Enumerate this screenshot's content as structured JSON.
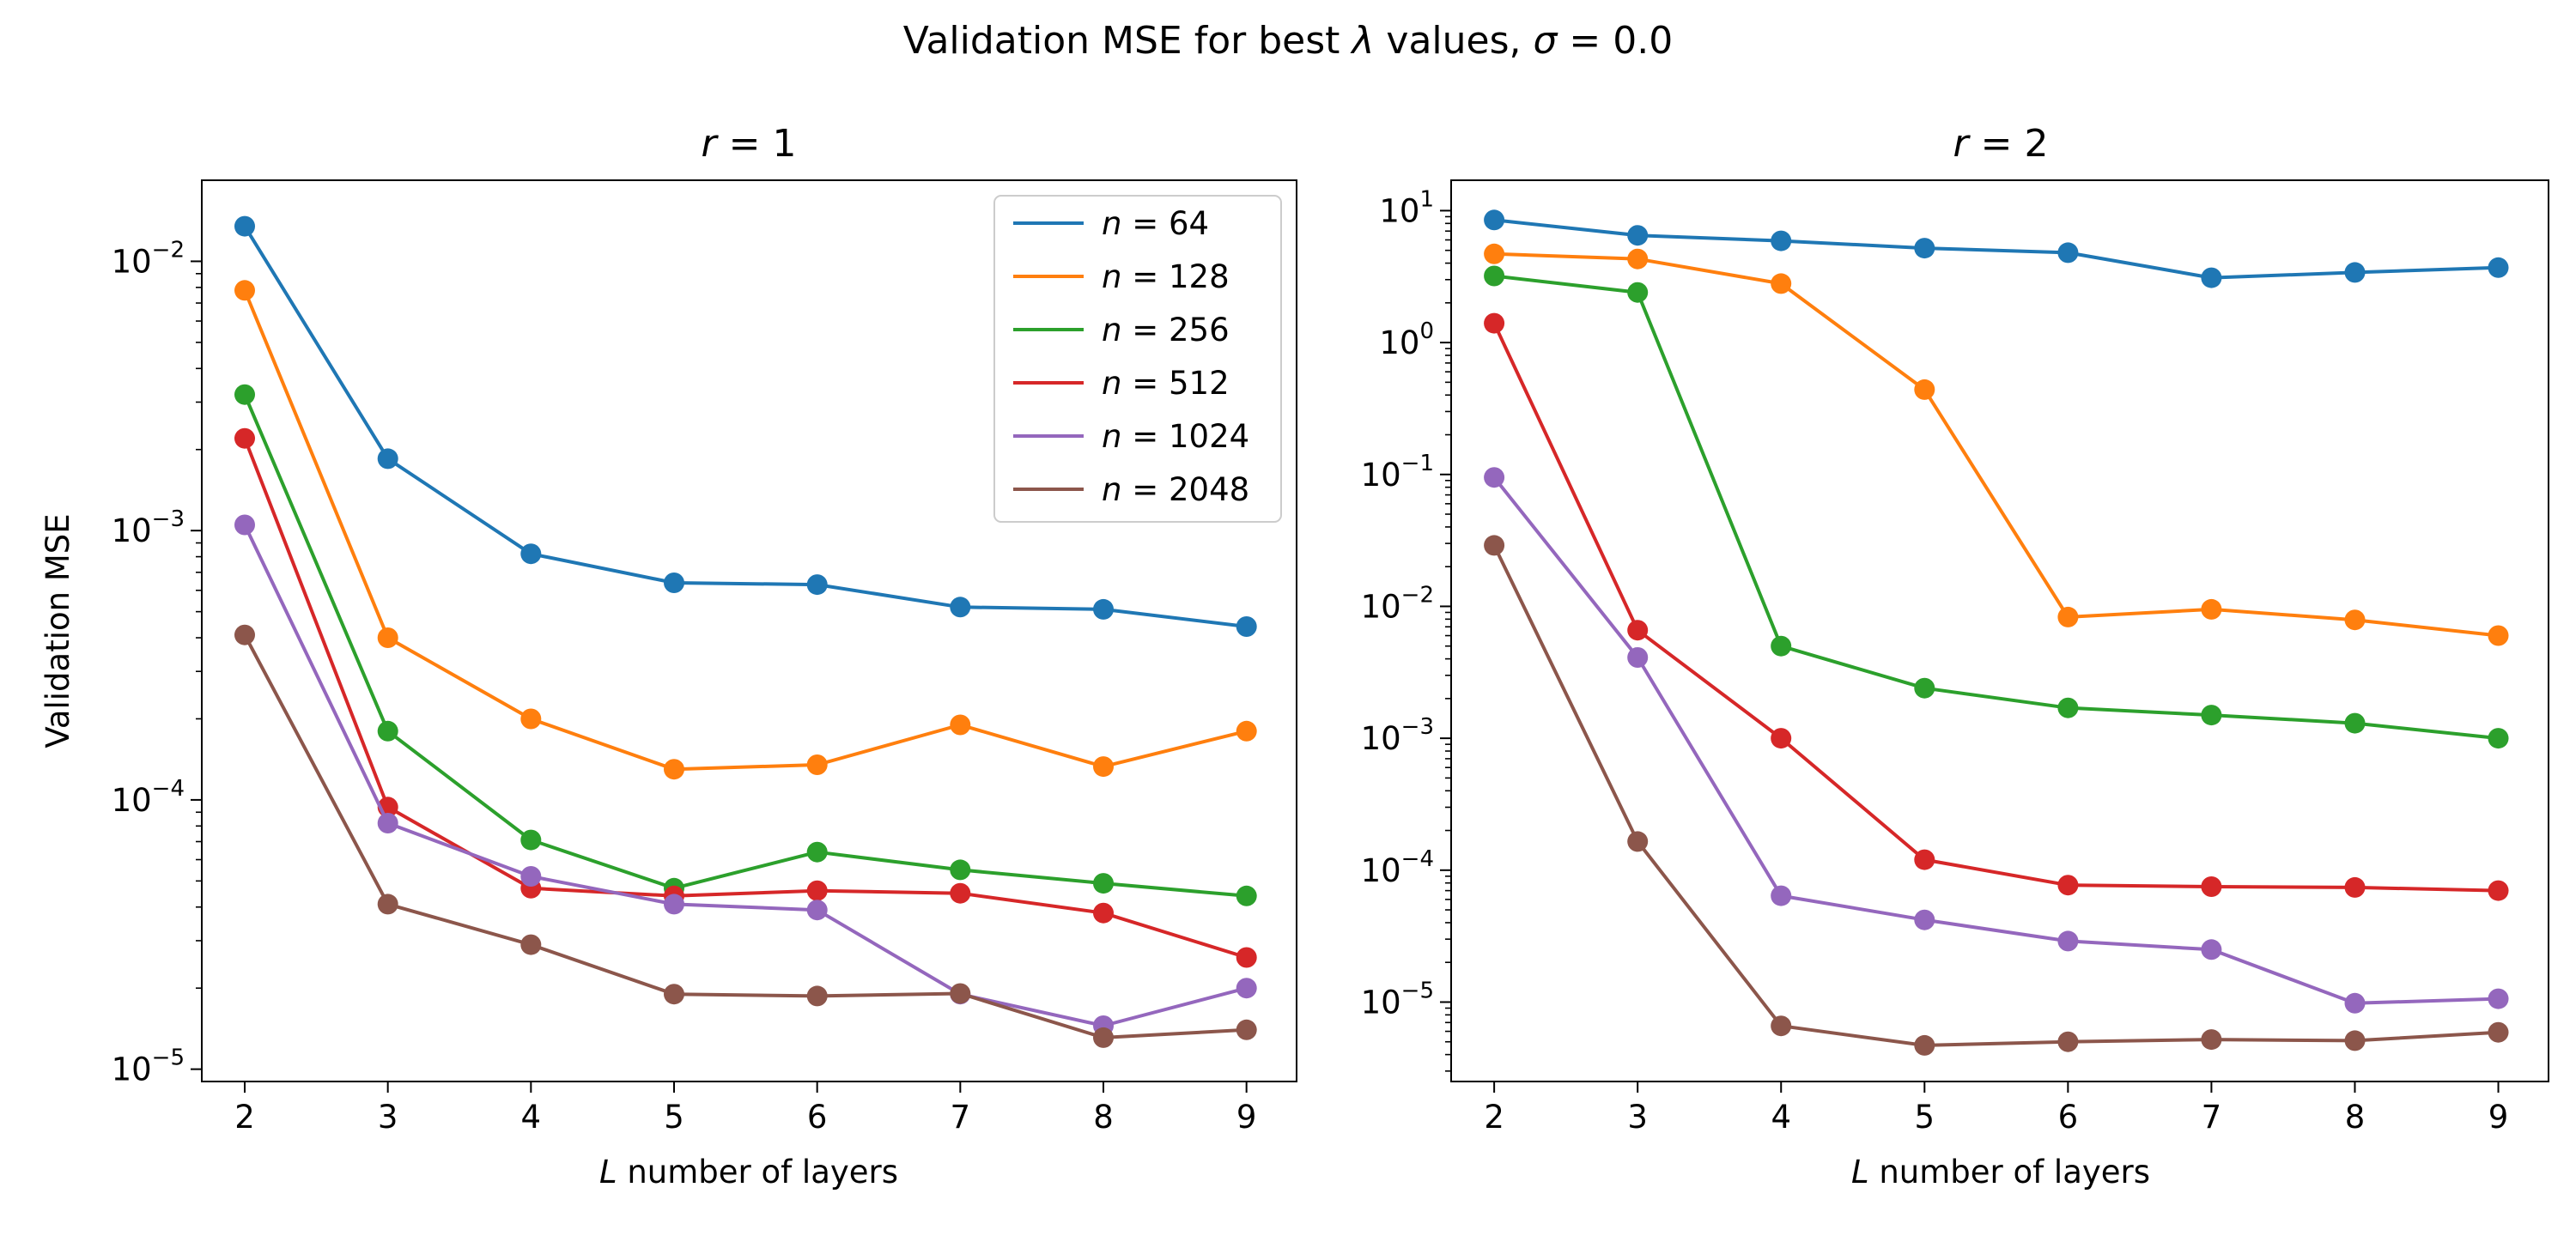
{
  "figure": {
    "title_pre": "Validation MSE for best ",
    "title_lambda": "λ",
    "title_mid": " values, ",
    "title_sigma": "σ",
    "title_post": " = 0.0"
  },
  "legend": {
    "location": "upper right of left panel",
    "entries": [
      {
        "var": "n",
        "eq": " = ",
        "value": "64"
      },
      {
        "var": "n",
        "eq": " = ",
        "value": "128"
      },
      {
        "var": "n",
        "eq": " = ",
        "value": "256"
      },
      {
        "var": "n",
        "eq": " = ",
        "value": "512"
      },
      {
        "var": "n",
        "eq": " = ",
        "value": "1024"
      },
      {
        "var": "n",
        "eq": " = ",
        "value": "2048"
      }
    ]
  },
  "colors": [
    "#1f77b4",
    "#ff7f0e",
    "#2ca02c",
    "#d62728",
    "#9467bd",
    "#8c564b"
  ],
  "chart_data": [
    {
      "type": "line",
      "title_var": "r",
      "title_rest": " = 1",
      "xlabel_var": "L",
      "xlabel_rest": " number of layers",
      "ylabel": "Validation MSE",
      "yscale": "log",
      "xlim": [
        1.7,
        9.35
      ],
      "ylim": [
        9e-06,
        0.02
      ],
      "x": [
        2,
        3,
        4,
        5,
        6,
        7,
        8,
        9
      ],
      "xticks": [
        "2",
        "3",
        "4",
        "5",
        "6",
        "7",
        "8",
        "9"
      ],
      "yticks": [
        {
          "base": "10",
          "exp": "−2",
          "value": 0.01
        },
        {
          "base": "10",
          "exp": "−3",
          "value": 0.001
        },
        {
          "base": "10",
          "exp": "−4",
          "value": 0.0001
        },
        {
          "base": "10",
          "exp": "−5",
          "value": 1e-05
        }
      ],
      "grid": false,
      "series": [
        {
          "name": "n = 64",
          "values": [
            0.0135,
            0.00185,
            0.00082,
            0.00064,
            0.00063,
            0.00052,
            0.00051,
            0.00044
          ]
        },
        {
          "name": "n = 128",
          "values": [
            0.0078,
            0.0004,
            0.0002,
            0.00013,
            0.000135,
            0.00019,
            0.000133,
            0.00018
          ]
        },
        {
          "name": "n = 256",
          "values": [
            0.0032,
            0.00018,
            7.1e-05,
            4.7e-05,
            6.4e-05,
            5.5e-05,
            4.9e-05,
            4.4e-05
          ]
        },
        {
          "name": "n = 512",
          "values": [
            0.0022,
            9.4e-05,
            4.7e-05,
            4.4e-05,
            4.6e-05,
            4.5e-05,
            3.8e-05,
            2.6e-05
          ]
        },
        {
          "name": "n = 1024",
          "values": [
            0.00105,
            8.2e-05,
            5.2e-05,
            4.1e-05,
            3.9e-05,
            1.9e-05,
            1.45e-05,
            2e-05
          ]
        },
        {
          "name": "n = 2048",
          "values": [
            0.00041,
            4.1e-05,
            2.9e-05,
            1.9e-05,
            1.87e-05,
            1.91e-05,
            1.31e-05,
            1.4e-05
          ]
        }
      ]
    },
    {
      "type": "line",
      "title_var": "r",
      "title_rest": " = 2",
      "xlabel_var": "L",
      "xlabel_rest": " number of layers",
      "ylabel": "",
      "yscale": "log",
      "xlim": [
        1.7,
        9.35
      ],
      "ylim": [
        2.5e-06,
        17
      ],
      "x": [
        2,
        3,
        4,
        5,
        6,
        7,
        8,
        9
      ],
      "xticks": [
        "2",
        "3",
        "4",
        "5",
        "6",
        "7",
        "8",
        "9"
      ],
      "yticks": [
        {
          "base": "10",
          "exp": "1",
          "value": 10
        },
        {
          "base": "10",
          "exp": "0",
          "value": 1
        },
        {
          "base": "10",
          "exp": "−1",
          "value": 0.1
        },
        {
          "base": "10",
          "exp": "−2",
          "value": 0.01
        },
        {
          "base": "10",
          "exp": "−3",
          "value": 0.001
        },
        {
          "base": "10",
          "exp": "−4",
          "value": 0.0001
        },
        {
          "base": "10",
          "exp": "−5",
          "value": 1e-05
        }
      ],
      "grid": false,
      "series": [
        {
          "name": "n = 64",
          "values": [
            8.5,
            6.5,
            5.9,
            5.2,
            4.8,
            3.1,
            3.4,
            3.7
          ]
        },
        {
          "name": "n = 128",
          "values": [
            4.7,
            4.3,
            2.8,
            0.44,
            0.0083,
            0.0095,
            0.0079,
            0.006
          ]
        },
        {
          "name": "n = 256",
          "values": [
            3.2,
            2.4,
            0.005,
            0.0024,
            0.0017,
            0.0015,
            0.0013,
            0.001
          ]
        },
        {
          "name": "n = 512",
          "values": [
            1.4,
            0.0066,
            0.001,
            0.00012,
            7.7e-05,
            7.5e-05,
            7.4e-05,
            7e-05
          ]
        },
        {
          "name": "n = 1024",
          "values": [
            0.095,
            0.0041,
            6.4e-05,
            4.2e-05,
            2.9e-05,
            2.5e-05,
            9.8e-06,
            1.06e-05
          ]
        },
        {
          "name": "n = 2048",
          "values": [
            0.029,
            0.000165,
            6.6e-06,
            4.7e-06,
            5e-06,
            5.2e-06,
            5.1e-06,
            5.9e-06
          ]
        }
      ]
    }
  ]
}
